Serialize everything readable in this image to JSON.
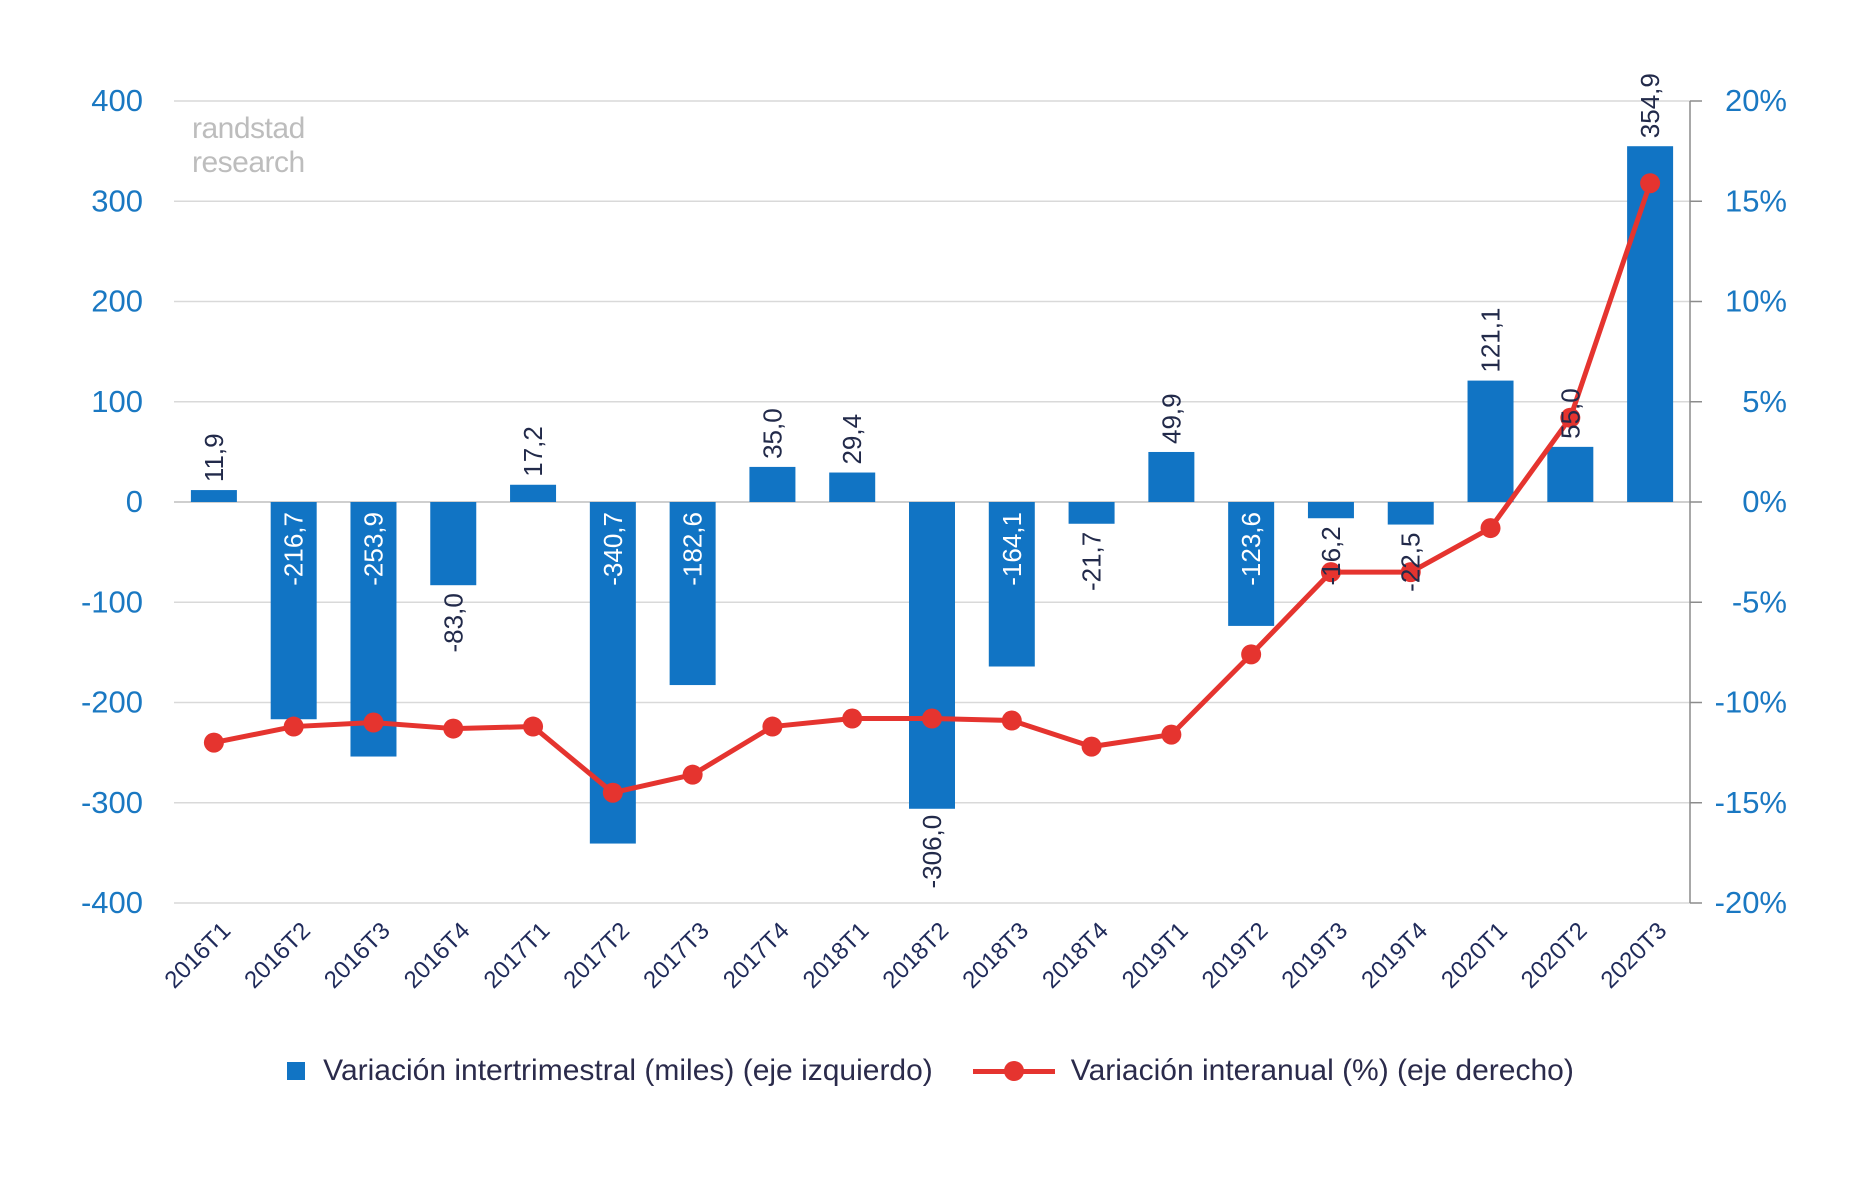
{
  "watermark": {
    "line1": "randstad",
    "line2": "research"
  },
  "colors": {
    "bar": "#1174c4",
    "line": "#e5342f",
    "axis_text": "#1a78c2",
    "category_text": "#1f2a5a",
    "grid": "#d9d9d9",
    "label_text_dark": "#222a4a",
    "label_text_light": "#ffffff"
  },
  "chart_data": {
    "type": "bar",
    "categories": [
      "2016T1",
      "2016T2",
      "2016T3",
      "2016T4",
      "2017T1",
      "2017T2",
      "2017T3",
      "2017T4",
      "2018T1",
      "2018T2",
      "2018T3",
      "2018T4",
      "2019T1",
      "2019T2",
      "2019T3",
      "2019T4",
      "2020T1",
      "2020T2",
      "2020T3"
    ],
    "left_axis": {
      "ylim": [
        -400,
        400
      ],
      "ticks": [
        400,
        300,
        200,
        100,
        0,
        -100,
        -200,
        -300,
        -400
      ]
    },
    "right_axis": {
      "ylim": [
        -20,
        20
      ],
      "ticks": [
        "20%",
        "15%",
        "10%",
        "5%",
        "0%",
        "-5%",
        "-10%",
        "-15%",
        "-20%"
      ]
    },
    "series": [
      {
        "name": "Variación intertrimestral (miles) (eje izquierdo)",
        "type": "bar",
        "axis": "left",
        "values": [
          11.9,
          -216.7,
          -253.9,
          -83.0,
          17.2,
          -340.7,
          -182.6,
          35.0,
          29.4,
          -306.0,
          -164.1,
          -21.7,
          49.9,
          -123.6,
          -16.2,
          -22.5,
          121.1,
          55.0,
          354.9
        ],
        "labels": [
          "11,9",
          "-216,7",
          "-253,9",
          "-83,0",
          "17,2",
          "-340,7",
          "-182,6",
          "35,0",
          "29,4",
          "-306,0",
          "-164,1",
          "-21,7",
          "49,9",
          "-123,6",
          "-16,2",
          "-22,5",
          "121,1",
          "55,0",
          "354,9"
        ]
      },
      {
        "name": "Variación interanual (%) (eje derecho)",
        "type": "line",
        "axis": "right",
        "values": [
          -12.0,
          -11.2,
          -11.0,
          -11.3,
          -11.2,
          -14.5,
          -13.6,
          -11.2,
          -10.8,
          -10.8,
          -10.9,
          -12.2,
          -11.6,
          -7.6,
          -3.5,
          -3.5,
          -1.3,
          4.2,
          15.9
        ]
      }
    ],
    "legend": {
      "position": "bottom"
    },
    "grid": true
  }
}
